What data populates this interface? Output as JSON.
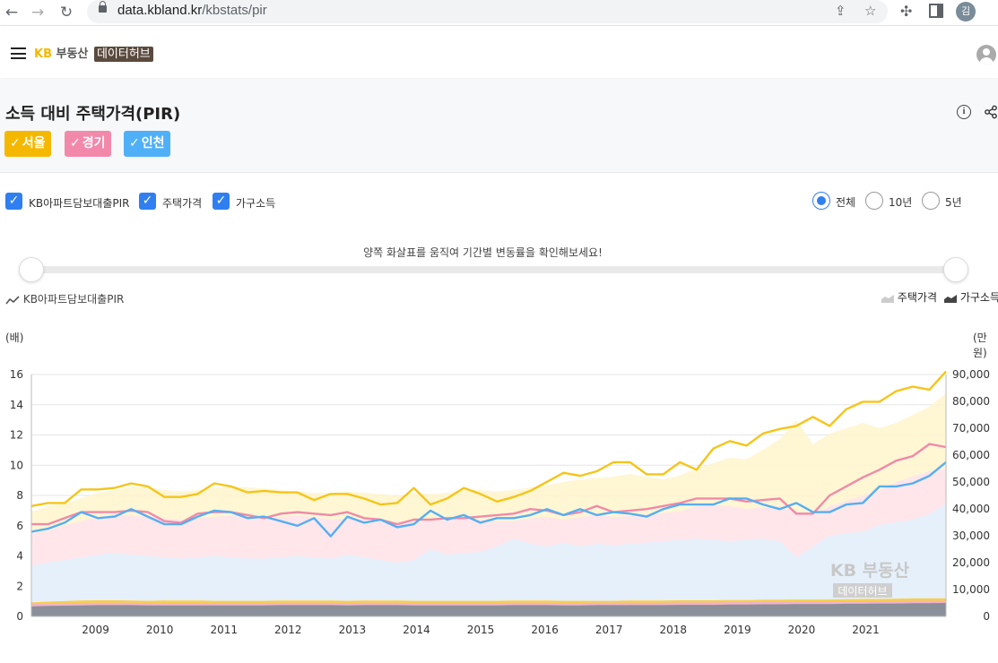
{
  "browser": {
    "url_domain": "data.kbland.kr",
    "url_path": "/kbstats/pir",
    "profile_initial": "김"
  },
  "header": {
    "logo_kb": "KB",
    "logo_name": "부동산",
    "logo_hub": "데이터허브"
  },
  "page": {
    "title": "소득 대비 주택가격(PIR)"
  },
  "regions": [
    {
      "label": "서울",
      "color": "#f5b800"
    },
    {
      "label": "경기",
      "color": "#f289ab"
    },
    {
      "label": "인천",
      "color": "#4fb0f7"
    }
  ],
  "filters": {
    "checkboxes": [
      {
        "label": "KB아파트담보대출PIR",
        "checked": true
      },
      {
        "label": "주택가격",
        "checked": true
      },
      {
        "label": "가구소득",
        "checked": true
      }
    ],
    "periods": [
      {
        "label": "전체",
        "selected": true
      },
      {
        "label": "10년",
        "selected": false
      },
      {
        "label": "5년",
        "selected": false
      }
    ]
  },
  "slider": {
    "hint": "양쪽 화살표를 움직여 기간별 변동률을 확인해보세요!"
  },
  "legend": {
    "left": "KB아파트담보대출PIR",
    "right_price": "주택가격",
    "right_income": "가구소득"
  },
  "chart_data": {
    "type": "line",
    "left_unit": "(배)",
    "right_unit": "(만원)",
    "y_left_ticks": [
      "16",
      "14",
      "12",
      "10",
      "8",
      "6",
      "4",
      "2",
      "0"
    ],
    "y_right_ticks": [
      "90,000",
      "80,000",
      "70,000",
      "60,000",
      "50,000",
      "40,000",
      "30,000",
      "20,000",
      "10,000",
      "0"
    ],
    "ylim_left": [
      0,
      16
    ],
    "ylim_right": [
      0,
      90000
    ],
    "x_ticks": [
      "2009",
      "2010",
      "2011",
      "2012",
      "2013",
      "2014",
      "2015",
      "2016",
      "2017",
      "2018",
      "2019",
      "2020",
      "2021"
    ],
    "x_start_year": 2008.0,
    "x_end_year": 2022.25,
    "watermark_top": "KB 부동산",
    "watermark_bottom": "데이터허브",
    "pir_series": [
      {
        "name": "서울",
        "color": "#f5c518",
        "values": [
          7.3,
          7.5,
          7.5,
          8.4,
          8.4,
          8.5,
          8.8,
          8.6,
          7.9,
          7.9,
          8.1,
          8.8,
          8.6,
          8.2,
          8.3,
          8.2,
          8.2,
          7.7,
          8.1,
          8.1,
          7.8,
          7.4,
          7.5,
          8.5,
          7.4,
          7.8,
          8.5,
          8.1,
          7.6,
          7.9,
          8.3,
          8.9,
          9.5,
          9.3,
          9.6,
          10.2,
          10.2,
          9.4,
          9.4,
          10.2,
          9.7,
          11.1,
          11.6,
          11.3,
          12.1,
          12.4,
          12.6,
          13.2,
          12.6,
          13.7,
          14.2,
          14.2,
          14.9,
          15.2,
          15.0,
          16.2
        ]
      },
      {
        "name": "경기",
        "color": "#f08aa8",
        "values": [
          6.1,
          6.1,
          6.5,
          6.9,
          6.9,
          6.9,
          7.0,
          6.9,
          6.3,
          6.2,
          6.8,
          6.9,
          6.9,
          6.7,
          6.5,
          6.8,
          6.9,
          6.8,
          6.7,
          6.9,
          6.5,
          6.4,
          6.1,
          6.4,
          6.4,
          6.5,
          6.5,
          6.6,
          6.7,
          6.8,
          7.1,
          7.0,
          6.7,
          6.9,
          7.3,
          6.9,
          7.0,
          7.1,
          7.3,
          7.5,
          7.8,
          7.8,
          7.8,
          7.6,
          7.7,
          7.8,
          6.8,
          6.8,
          8.0,
          8.6,
          9.2,
          9.7,
          10.3,
          10.6,
          11.4,
          11.2
        ]
      },
      {
        "name": "인천",
        "color": "#55aef3",
        "values": [
          5.6,
          5.8,
          6.2,
          6.9,
          6.5,
          6.6,
          7.1,
          6.6,
          6.1,
          6.1,
          6.6,
          7.0,
          6.9,
          6.5,
          6.6,
          6.3,
          6.0,
          6.5,
          5.3,
          6.6,
          6.2,
          6.4,
          5.9,
          6.1,
          7.0,
          6.4,
          6.7,
          6.2,
          6.5,
          6.5,
          6.7,
          7.1,
          6.7,
          7.1,
          6.7,
          6.9,
          6.8,
          6.6,
          7.1,
          7.4,
          7.4,
          7.4,
          7.8,
          7.8,
          7.4,
          7.1,
          7.5,
          6.9,
          6.9,
          7.4,
          7.5,
          8.6,
          8.6,
          8.8,
          9.3,
          10.2
        ]
      }
    ],
    "house_price_series": [
      {
        "name": "서울",
        "color": "#fff5cc",
        "values": [
          39000,
          41000,
          42000,
          44000,
          46000,
          47000,
          48500,
          48000,
          47000,
          46500,
          47000,
          48000,
          48500,
          48000,
          47500,
          47000,
          46500,
          46000,
          46000,
          46500,
          46000,
          45500,
          45000,
          46000,
          45500,
          46000,
          47000,
          47000,
          46500,
          47000,
          48000,
          49000,
          50000,
          51000,
          51500,
          52000,
          53000,
          52000,
          51000,
          52500,
          55000,
          57000,
          59000,
          58500,
          62000,
          66000,
          73000,
          64000,
          68000,
          70000,
          72000,
          70000,
          72000,
          75000,
          78000,
          83000
        ]
      },
      {
        "name": "경기",
        "color": "#ffe3ee",
        "values": [
          31000,
          32000,
          34000,
          35500,
          37000,
          38000,
          37500,
          37000,
          36500,
          36000,
          36500,
          37000,
          37500,
          37000,
          36500,
          37000,
          37500,
          37000,
          36000,
          36500,
          36000,
          35500,
          35000,
          35000,
          35500,
          36000,
          36500,
          36000,
          35500,
          35500,
          36500,
          37000,
          36000,
          37000,
          38000,
          37000,
          37500,
          38000,
          38500,
          39000,
          41000,
          41500,
          41000,
          40000,
          40500,
          41000,
          39000,
          38000,
          41000,
          43000,
          45000,
          47000,
          50000,
          52000,
          54000,
          55000
        ]
      },
      {
        "name": "인천",
        "color": "#e2f1fd",
        "values": [
          19000,
          20000,
          21000,
          22000,
          23000,
          23500,
          23000,
          22500,
          22000,
          21500,
          22000,
          22500,
          22000,
          21500,
          21500,
          22000,
          22500,
          22000,
          21500,
          23000,
          22000,
          21000,
          20000,
          21000,
          25000,
          23000,
          23500,
          24000,
          26000,
          29000,
          27000,
          26000,
          27500,
          26000,
          27000,
          26500,
          27000,
          27500,
          28000,
          28500,
          29000,
          28500,
          28000,
          28500,
          29000,
          28000,
          22000,
          26000,
          30000,
          31000,
          31500,
          34000,
          35000,
          36000,
          38000,
          42000
        ]
      }
    ],
    "income_series": [
      {
        "name": "서울",
        "color": "#f7cf4a",
        "values": [
          5200,
          5500,
          5700,
          5900,
          6000,
          6000,
          5900,
          5800,
          5900,
          5900,
          5900,
          5800,
          5800,
          5800,
          5800,
          5900,
          5900,
          5900,
          5900,
          5800,
          5900,
          5900,
          5900,
          5800,
          5800,
          5800,
          5800,
          5800,
          5800,
          5900,
          5900,
          5900,
          5800,
          5800,
          5800,
          5800,
          5900,
          5900,
          5900,
          6000,
          6000,
          6000,
          6100,
          6100,
          6200,
          6200,
          6300,
          6300,
          6300,
          6400,
          6500,
          6500,
          6600,
          6700,
          6700,
          6700
        ]
      },
      {
        "name": "경기",
        "color": "#f3b2c7",
        "values": [
          4600,
          4800,
          4900,
          5000,
          5100,
          5100,
          5100,
          5000,
          5000,
          5000,
          5000,
          5000,
          5000,
          5000,
          5000,
          5100,
          5100,
          5100,
          5100,
          5000,
          5100,
          5100,
          5100,
          5000,
          5000,
          5000,
          5000,
          5000,
          5000,
          5100,
          5100,
          5100,
          5000,
          5000,
          5100,
          5100,
          5100,
          5100,
          5100,
          5200,
          5200,
          5200,
          5300,
          5300,
          5400,
          5400,
          5500,
          5500,
          5500,
          5600,
          5600,
          5700,
          5700,
          5800,
          5800,
          5800
        ]
      },
      {
        "name": "인천",
        "color": "#8a8f99",
        "values": [
          3700,
          3900,
          4000,
          4100,
          4200,
          4200,
          4200,
          4100,
          4100,
          4100,
          4100,
          4100,
          4100,
          4100,
          4100,
          4200,
          4200,
          4200,
          4200,
          4100,
          4200,
          4200,
          4200,
          4100,
          4100,
          4100,
          4100,
          4100,
          4100,
          4200,
          4200,
          4200,
          4100,
          4100,
          4200,
          4200,
          4200,
          4200,
          4200,
          4300,
          4300,
          4300,
          4400,
          4400,
          4500,
          4500,
          4600,
          4600,
          4600,
          4700,
          4700,
          4800,
          4800,
          4900,
          4900,
          5000
        ]
      }
    ]
  }
}
